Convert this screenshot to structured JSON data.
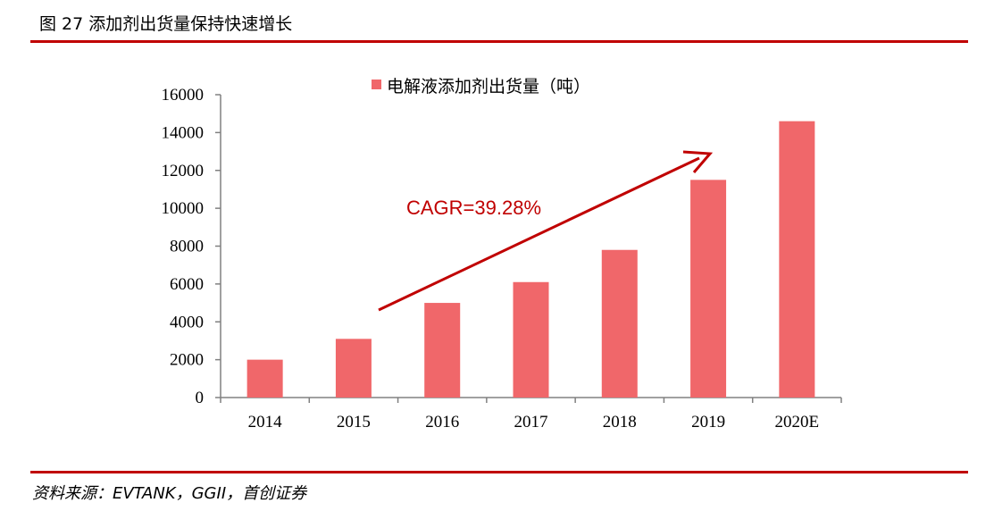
{
  "header": {
    "title": "图 27 添加剂出货量保持快速增长"
  },
  "footer": {
    "source": "资料来源：EVTANK，GGII，首创证券"
  },
  "chart_data": {
    "type": "bar",
    "categories": [
      "2014",
      "2015",
      "2016",
      "2017",
      "2018",
      "2019",
      "2020E"
    ],
    "series": [
      {
        "name": "电解液添加剂出货量（吨）",
        "values": [
          2000,
          3100,
          5000,
          6100,
          7800,
          11500,
          14600
        ]
      }
    ],
    "ylim": [
      0,
      16000
    ],
    "yticks": [
      0,
      2000,
      4000,
      6000,
      8000,
      10000,
      12000,
      14000,
      16000
    ],
    "legend": "top",
    "grid": false,
    "annotation": {
      "text": "CAGR=39.28%"
    },
    "colors": {
      "bar": "#f0676a",
      "accent": "#c00000",
      "axis": "#808080"
    }
  }
}
